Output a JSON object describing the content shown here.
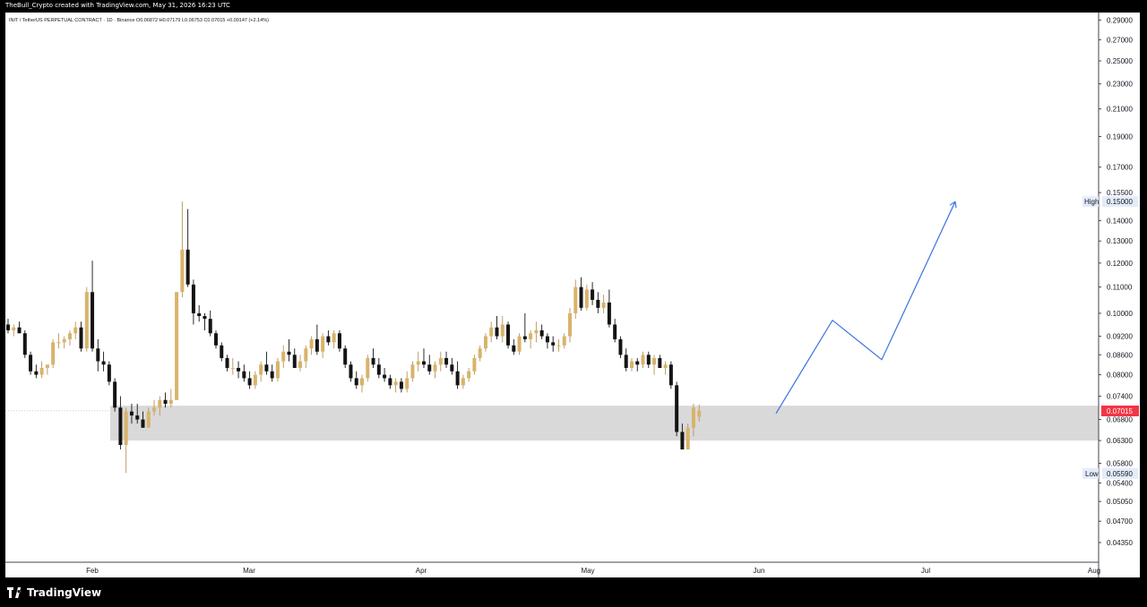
{
  "header": {
    "attribution": "TheBull_Crypto created with TradingView.com, May 31, 2026 16:23 UTC"
  },
  "footer": {
    "brand": "TradingView"
  },
  "chart_data": {
    "type": "candlestick",
    "legend_text": "INIT / TetherUS PERPETUAL CONTRACT · 1D · Binance  O0.06872  H0.07179  L0.06753  C0.07015  +0.00147 (+2.14%)",
    "y_scale": "log",
    "ylim": [
      0.0405,
      0.298
    ],
    "price_ticks": [
      "0.29000",
      "0.27000",
      "0.25000",
      "0.23000",
      "0.21000",
      "0.19000",
      "0.17000",
      "0.15500",
      "0.14000",
      "0.13000",
      "0.12000",
      "0.11000",
      "0.10000",
      "0.09200",
      "0.08600",
      "0.08000",
      "0.07400",
      "0.06800",
      "0.06300",
      "0.05800",
      "0.05400",
      "0.05050",
      "0.04700",
      "0.04350"
    ],
    "time_labels": [
      "Feb",
      "Mar",
      "Apr",
      "May",
      "Jun",
      "Jul",
      "Aug"
    ],
    "last_price": "0.07015",
    "high_marker": {
      "label": "High",
      "value": "0.15000"
    },
    "low_marker": {
      "label": "Low",
      "value": "0.05590"
    },
    "zone": {
      "from": 0.063,
      "to": 0.0715
    },
    "projection": [
      0.0695,
      0.0975,
      0.0845,
      0.15
    ],
    "candles": [
      [
        0.096,
        0.098,
        0.093,
        0.094
      ],
      [
        0.094,
        0.096,
        0.092,
        0.095
      ],
      [
        0.095,
        0.097,
        0.093,
        0.093
      ],
      [
        0.093,
        0.094,
        0.085,
        0.086
      ],
      [
        0.086,
        0.087,
        0.08,
        0.081
      ],
      [
        0.081,
        0.083,
        0.079,
        0.08
      ],
      [
        0.08,
        0.084,
        0.079,
        0.082
      ],
      [
        0.082,
        0.083,
        0.08,
        0.083
      ],
      [
        0.083,
        0.091,
        0.082,
        0.09
      ],
      [
        0.09,
        0.093,
        0.088,
        0.09
      ],
      [
        0.09,
        0.092,
        0.088,
        0.091
      ],
      [
        0.091,
        0.094,
        0.089,
        0.093
      ],
      [
        0.093,
        0.097,
        0.091,
        0.095
      ],
      [
        0.095,
        0.097,
        0.087,
        0.088
      ],
      [
        0.088,
        0.11,
        0.087,
        0.108
      ],
      [
        0.108,
        0.121,
        0.087,
        0.088
      ],
      [
        0.088,
        0.091,
        0.081,
        0.084
      ],
      [
        0.084,
        0.087,
        0.081,
        0.083
      ],
      [
        0.083,
        0.084,
        0.077,
        0.078
      ],
      [
        0.078,
        0.079,
        0.07,
        0.071
      ],
      [
        0.071,
        0.074,
        0.061,
        0.062
      ],
      [
        0.062,
        0.071,
        0.056,
        0.07
      ],
      [
        0.07,
        0.072,
        0.067,
        0.069
      ],
      [
        0.069,
        0.072,
        0.067,
        0.068
      ],
      [
        0.068,
        0.07,
        0.066,
        0.066
      ],
      [
        0.066,
        0.071,
        0.066,
        0.07
      ],
      [
        0.07,
        0.073,
        0.069,
        0.071
      ],
      [
        0.071,
        0.074,
        0.069,
        0.073
      ],
      [
        0.073,
        0.075,
        0.071,
        0.072
      ],
      [
        0.072,
        0.076,
        0.071,
        0.073
      ],
      [
        0.073,
        0.108,
        0.073,
        0.108
      ],
      [
        0.108,
        0.15,
        0.106,
        0.126
      ],
      [
        0.126,
        0.146,
        0.11,
        0.111
      ],
      [
        0.111,
        0.113,
        0.096,
        0.1
      ],
      [
        0.1,
        0.103,
        0.097,
        0.099
      ],
      [
        0.099,
        0.1,
        0.094,
        0.098
      ],
      [
        0.098,
        0.101,
        0.092,
        0.093
      ],
      [
        0.093,
        0.094,
        0.088,
        0.089
      ],
      [
        0.089,
        0.09,
        0.084,
        0.085
      ],
      [
        0.085,
        0.086,
        0.081,
        0.082
      ],
      [
        0.082,
        0.085,
        0.08,
        0.082
      ],
      [
        0.082,
        0.084,
        0.079,
        0.081
      ],
      [
        0.081,
        0.083,
        0.078,
        0.079
      ],
      [
        0.079,
        0.081,
        0.076,
        0.077
      ],
      [
        0.077,
        0.081,
        0.076,
        0.08
      ],
      [
        0.08,
        0.084,
        0.078,
        0.083
      ],
      [
        0.083,
        0.087,
        0.08,
        0.081
      ],
      [
        0.081,
        0.083,
        0.078,
        0.079
      ],
      [
        0.079,
        0.085,
        0.078,
        0.084
      ],
      [
        0.084,
        0.089,
        0.082,
        0.087
      ],
      [
        0.087,
        0.091,
        0.084,
        0.086
      ],
      [
        0.086,
        0.088,
        0.082,
        0.082
      ],
      [
        0.082,
        0.086,
        0.081,
        0.084
      ],
      [
        0.084,
        0.089,
        0.082,
        0.088
      ],
      [
        0.088,
        0.092,
        0.086,
        0.091
      ],
      [
        0.091,
        0.096,
        0.086,
        0.087
      ],
      [
        0.087,
        0.093,
        0.085,
        0.092
      ],
      [
        0.092,
        0.094,
        0.089,
        0.09
      ],
      [
        0.09,
        0.094,
        0.088,
        0.093
      ],
      [
        0.093,
        0.094,
        0.087,
        0.088
      ],
      [
        0.088,
        0.089,
        0.082,
        0.083
      ],
      [
        0.083,
        0.084,
        0.078,
        0.079
      ],
      [
        0.079,
        0.081,
        0.076,
        0.077
      ],
      [
        0.077,
        0.08,
        0.075,
        0.079
      ],
      [
        0.079,
        0.086,
        0.078,
        0.085
      ],
      [
        0.085,
        0.088,
        0.082,
        0.083
      ],
      [
        0.083,
        0.085,
        0.079,
        0.08
      ],
      [
        0.08,
        0.082,
        0.078,
        0.079
      ],
      [
        0.079,
        0.08,
        0.076,
        0.077
      ],
      [
        0.077,
        0.079,
        0.075,
        0.078
      ],
      [
        0.078,
        0.079,
        0.075,
        0.076
      ],
      [
        0.076,
        0.081,
        0.075,
        0.079
      ],
      [
        0.079,
        0.084,
        0.078,
        0.083
      ],
      [
        0.083,
        0.087,
        0.081,
        0.084
      ],
      [
        0.084,
        0.088,
        0.082,
        0.083
      ],
      [
        0.083,
        0.086,
        0.08,
        0.081
      ],
      [
        0.081,
        0.084,
        0.079,
        0.083
      ],
      [
        0.083,
        0.087,
        0.081,
        0.085
      ],
      [
        0.085,
        0.087,
        0.082,
        0.083
      ],
      [
        0.083,
        0.085,
        0.08,
        0.081
      ],
      [
        0.081,
        0.084,
        0.076,
        0.077
      ],
      [
        0.077,
        0.08,
        0.076,
        0.079
      ],
      [
        0.079,
        0.082,
        0.078,
        0.081
      ],
      [
        0.081,
        0.086,
        0.08,
        0.085
      ],
      [
        0.085,
        0.089,
        0.084,
        0.088
      ],
      [
        0.088,
        0.093,
        0.087,
        0.092
      ],
      [
        0.092,
        0.097,
        0.09,
        0.095
      ],
      [
        0.095,
        0.099,
        0.091,
        0.092
      ],
      [
        0.092,
        0.099,
        0.09,
        0.096
      ],
      [
        0.096,
        0.097,
        0.088,
        0.089
      ],
      [
        0.089,
        0.091,
        0.086,
        0.087
      ],
      [
        0.087,
        0.093,
        0.086,
        0.092
      ],
      [
        0.092,
        0.1,
        0.09,
        0.091
      ],
      [
        0.091,
        0.094,
        0.088,
        0.093
      ],
      [
        0.093,
        0.097,
        0.09,
        0.094
      ],
      [
        0.094,
        0.096,
        0.091,
        0.092
      ],
      [
        0.092,
        0.093,
        0.088,
        0.09
      ],
      [
        0.09,
        0.092,
        0.087,
        0.089
      ],
      [
        0.089,
        0.091,
        0.087,
        0.089
      ],
      [
        0.089,
        0.093,
        0.088,
        0.092
      ],
      [
        0.092,
        0.102,
        0.09,
        0.1
      ],
      [
        0.1,
        0.113,
        0.098,
        0.11
      ],
      [
        0.11,
        0.114,
        0.101,
        0.102
      ],
      [
        0.102,
        0.111,
        0.101,
        0.109
      ],
      [
        0.109,
        0.112,
        0.103,
        0.105
      ],
      [
        0.105,
        0.108,
        0.1,
        0.102
      ],
      [
        0.102,
        0.107,
        0.1,
        0.104
      ],
      [
        0.104,
        0.109,
        0.095,
        0.096
      ],
      [
        0.096,
        0.098,
        0.09,
        0.091
      ],
      [
        0.091,
        0.092,
        0.085,
        0.086
      ],
      [
        0.086,
        0.088,
        0.081,
        0.082
      ],
      [
        0.082,
        0.085,
        0.081,
        0.084
      ],
      [
        0.084,
        0.085,
        0.081,
        0.083
      ],
      [
        0.083,
        0.087,
        0.082,
        0.086
      ],
      [
        0.086,
        0.087,
        0.082,
        0.083
      ],
      [
        0.083,
        0.086,
        0.08,
        0.085
      ],
      [
        0.085,
        0.086,
        0.082,
        0.082
      ],
      [
        0.082,
        0.084,
        0.08,
        0.083
      ],
      [
        0.083,
        0.084,
        0.076,
        0.077
      ],
      [
        0.077,
        0.078,
        0.064,
        0.065
      ],
      [
        0.065,
        0.067,
        0.061,
        0.061
      ],
      [
        0.061,
        0.067,
        0.061,
        0.066
      ],
      [
        0.066,
        0.072,
        0.064,
        0.071
      ],
      [
        0.0687,
        0.0718,
        0.0675,
        0.0702
      ]
    ]
  }
}
